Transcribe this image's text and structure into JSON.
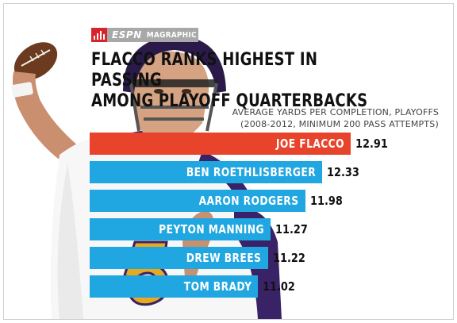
{
  "brand": {
    "network": "ESPN",
    "product": "MAGRAPHIC",
    "icon": "espn-bars-icon",
    "icon_color": "#d8242c",
    "strip_color": "#a8a8a8"
  },
  "title_line1": "FLACCO RANKS HIGHEST IN PASSING",
  "title_line2": "AMONG PLAYOFF QUARTERBACKS",
  "subtitle_line1": "AVERAGE YARDS PER COMPLETION, PLAYOFFS",
  "subtitle_line2": "(2008-2012, MINIMUM 200 PASS ATTEMPTS)",
  "colors": {
    "highlight": "#e8432b",
    "bar": "#20a6e0",
    "jersey": "#ffffff",
    "jersey_number": "#e8a81f"
  },
  "chart_data": {
    "type": "bar",
    "orientation": "horizontal",
    "title": "FLACCO RANKS HIGHEST IN PASSING AMONG PLAYOFF QUARTERBACKS",
    "subtitle": "AVERAGE YARDS PER COMPLETION, PLAYOFFS (2008-2012, MINIMUM 200 PASS ATTEMPTS)",
    "categories": [
      "JOE FLACCO",
      "BEN ROETHLISBERGER",
      "AARON RODGERS",
      "PEYTON MANNING",
      "DREW BREES",
      "TOM BRADY"
    ],
    "values": [
      12.91,
      12.33,
      11.98,
      11.27,
      11.22,
      11.02
    ],
    "value_labels": [
      "12.91",
      "12.33",
      "11.98",
      "11.27",
      "11.22",
      "11.02"
    ],
    "highlight_index": 0,
    "legend": "none",
    "grid": false
  }
}
